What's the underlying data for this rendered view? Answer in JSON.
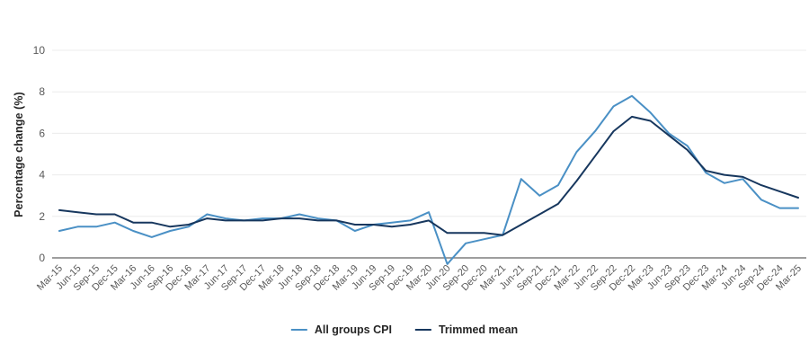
{
  "chart_data": {
    "type": "line",
    "title": "",
    "xlabel": "",
    "ylabel": "Percentage change (%)",
    "ylim": [
      0,
      10
    ],
    "y_ticks": [
      0,
      2,
      4,
      6,
      8,
      10
    ],
    "grid": true,
    "legend_position": "bottom-center",
    "categories": [
      "Mar-15",
      "Jun-15",
      "Sep-15",
      "Dec-15",
      "Mar-16",
      "Jun-16",
      "Sep-16",
      "Dec-16",
      "Mar-17",
      "Jun-17",
      "Sep-17",
      "Dec-17",
      "Mar-18",
      "Jun-18",
      "Sep-18",
      "Dec-18",
      "Mar-19",
      "Jun-19",
      "Sep-19",
      "Dec-19",
      "Mar-20",
      "Jun-20",
      "Sep-20",
      "Dec-20",
      "Mar-21",
      "Jun-21",
      "Sep-21",
      "Dec-21",
      "Mar-22",
      "Jun-22",
      "Sep-22",
      "Dec-22",
      "Mar-23",
      "Jun-23",
      "Sep-23",
      "Dec-23",
      "Mar-24",
      "Jun-24",
      "Sep-24",
      "Dec-24",
      "Mar-25"
    ],
    "series": [
      {
        "name": "All groups CPI",
        "color": "#4a90c5",
        "values": [
          1.3,
          1.5,
          1.5,
          1.7,
          1.3,
          1.0,
          1.3,
          1.5,
          2.1,
          1.9,
          1.8,
          1.9,
          1.9,
          2.1,
          1.9,
          1.8,
          1.3,
          1.6,
          1.7,
          1.8,
          2.2,
          -0.3,
          0.7,
          0.9,
          1.1,
          3.8,
          3.0,
          3.5,
          5.1,
          6.1,
          7.3,
          7.8,
          7.0,
          6.0,
          5.4,
          4.1,
          3.6,
          3.8,
          2.8,
          2.4,
          2.4
        ]
      },
      {
        "name": "Trimmed mean",
        "color": "#17375e",
        "values": [
          2.3,
          2.2,
          2.1,
          2.1,
          1.7,
          1.7,
          1.5,
          1.6,
          1.9,
          1.8,
          1.8,
          1.8,
          1.9,
          1.9,
          1.8,
          1.8,
          1.6,
          1.6,
          1.5,
          1.6,
          1.8,
          1.2,
          1.2,
          1.2,
          1.1,
          1.6,
          2.1,
          2.6,
          3.7,
          4.9,
          6.1,
          6.8,
          6.6,
          5.9,
          5.2,
          4.2,
          4.0,
          3.9,
          3.5,
          3.2,
          2.9
        ]
      }
    ],
    "style_colors": {
      "gridline": "#ececec",
      "zero_line": "#7f7f7f",
      "tick_text": "#595959",
      "label_text": "#262626",
      "background": "#ffffff"
    }
  }
}
